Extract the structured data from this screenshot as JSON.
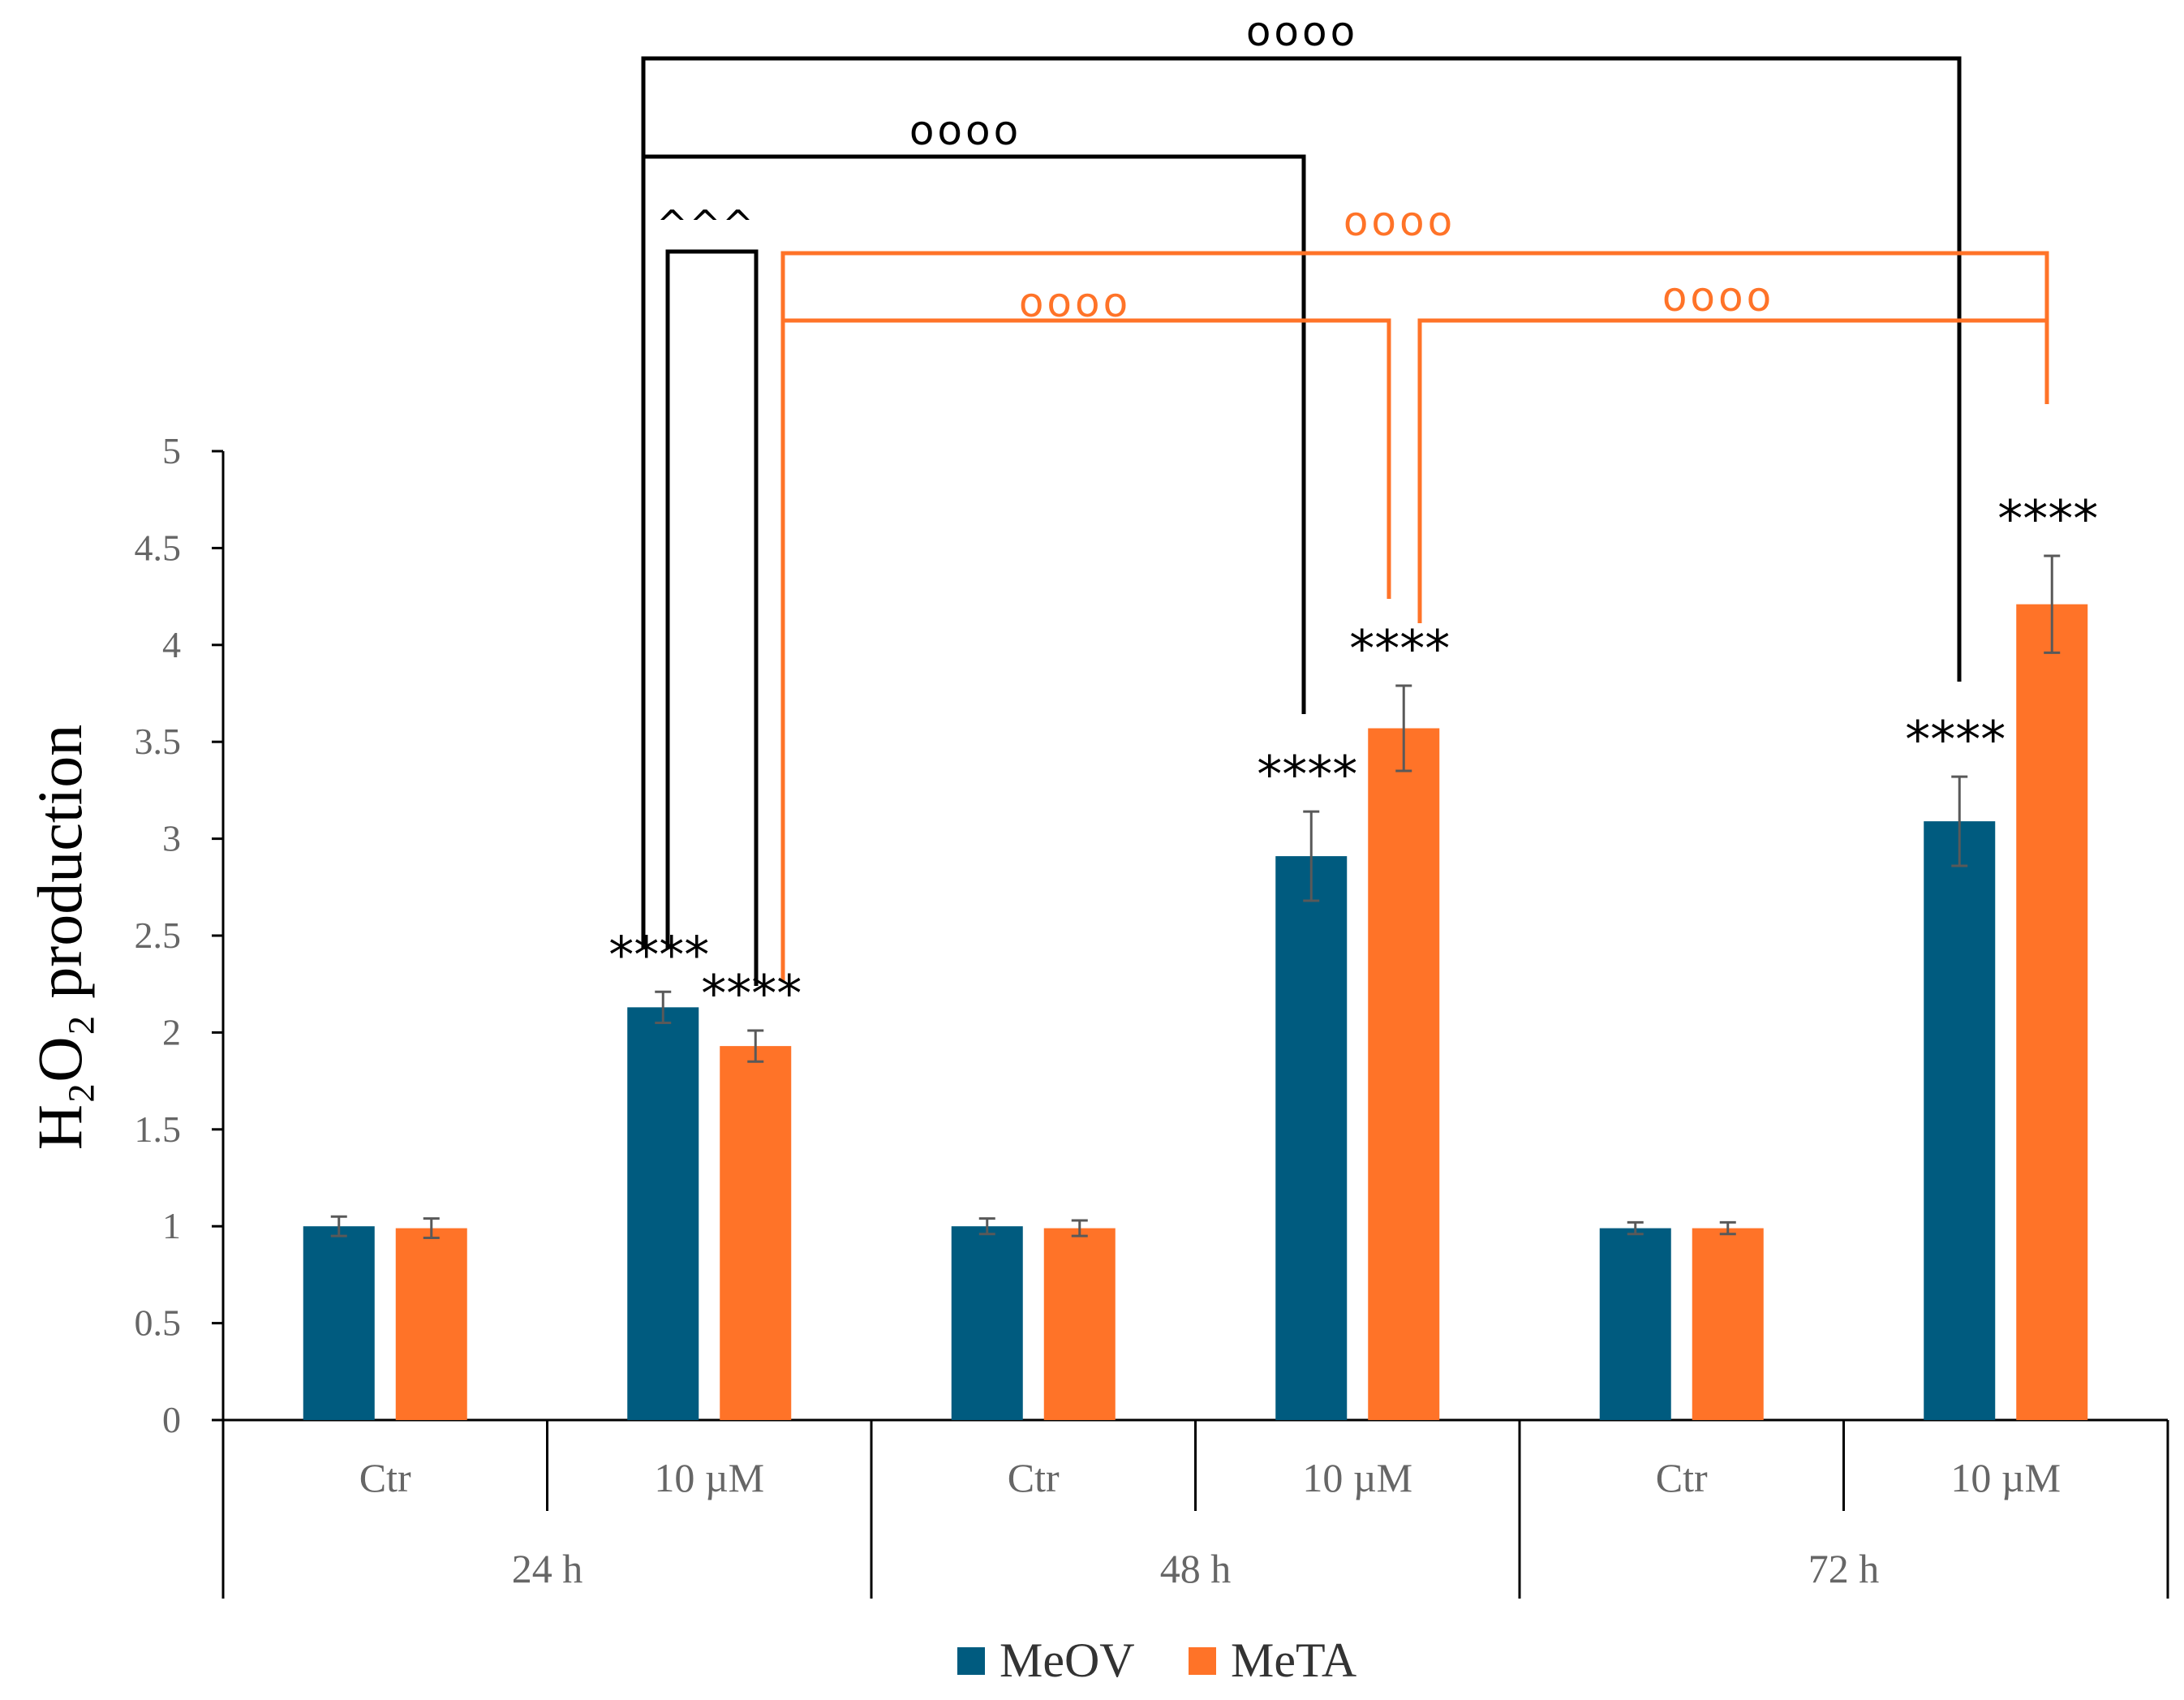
{
  "chart_data": {
    "type": "bar",
    "ylabel": "H₂O₂ production",
    "ylim": [
      0,
      5
    ],
    "yticks": [
      0,
      0.5,
      1,
      1.5,
      2,
      2.5,
      3,
      3.5,
      4,
      4.5,
      5
    ],
    "ytick_labels": [
      "0",
      "0.5",
      "1",
      "1.5",
      "2",
      "2.5",
      "3",
      "3.5",
      "4",
      "4.5",
      "5"
    ],
    "categories": [
      "Ctr",
      "10 µM",
      "Ctr",
      "10 µM",
      "Ctr",
      "10 µM"
    ],
    "groups": [
      "24 h",
      "48 h",
      "72 h"
    ],
    "series": [
      {
        "name": "MeOV",
        "color": "#005b7f",
        "values": [
          1.0,
          2.13,
          1.0,
          2.91,
          0.99,
          3.09
        ],
        "errors": [
          0.05,
          0.08,
          0.04,
          0.23,
          0.03,
          0.23
        ]
      },
      {
        "name": "MeTA",
        "color": "#ff7328",
        "values": [
          0.99,
          1.93,
          0.99,
          3.57,
          0.99,
          4.21
        ],
        "errors": [
          0.05,
          0.08,
          0.04,
          0.22,
          0.03,
          0.25
        ]
      }
    ],
    "significance": [
      {
        "label": "****",
        "category": 1,
        "series": 0
      },
      {
        "label": "****",
        "category": 1,
        "series": 1
      },
      {
        "label": "****",
        "category": 3,
        "series": 0
      },
      {
        "label": "****",
        "category": 3,
        "series": 1
      },
      {
        "label": "****",
        "category": 5,
        "series": 0
      },
      {
        "label": "****",
        "category": 5,
        "series": 1
      }
    ],
    "comparisons": [
      {
        "label": "^^^",
        "color": "#000000",
        "from": [
          1,
          0
        ],
        "to": [
          1,
          1
        ]
      },
      {
        "label": "oooo",
        "color": "#000000",
        "from": [
          1,
          0
        ],
        "to": [
          3,
          0
        ]
      },
      {
        "label": "oooo",
        "color": "#000000",
        "from": [
          1,
          0
        ],
        "to": [
          5,
          0
        ]
      },
      {
        "label": "oooo",
        "color": "#ff7328",
        "from": [
          1,
          1
        ],
        "to": [
          3,
          1
        ]
      },
      {
        "label": "oooo",
        "color": "#ff7328",
        "from": [
          1,
          1
        ],
        "to": [
          5,
          1
        ]
      },
      {
        "label": "oooo",
        "color": "#ff7328",
        "from": [
          3,
          1
        ],
        "to": [
          5,
          1
        ]
      }
    ],
    "legend": {
      "position": "bottom-center"
    }
  }
}
